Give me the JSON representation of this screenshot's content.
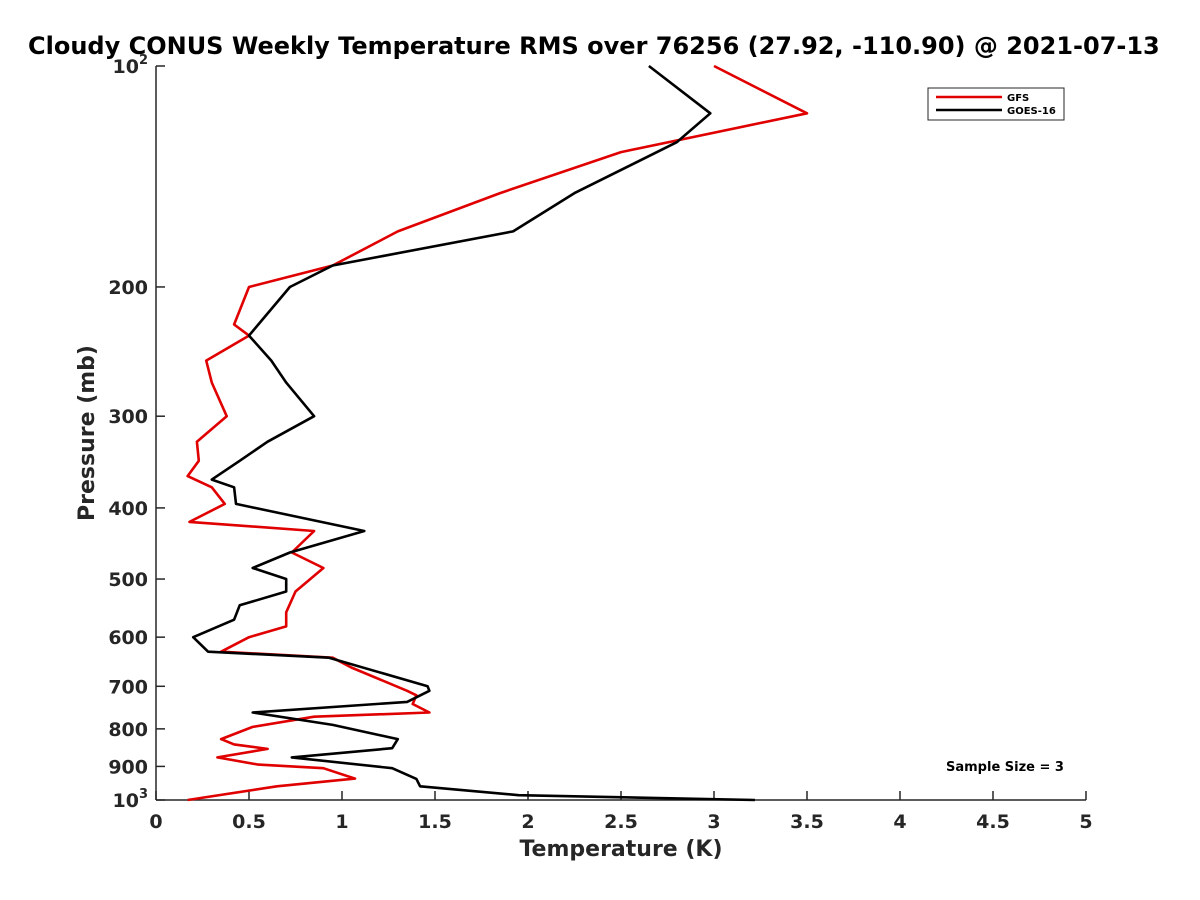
{
  "chart_data": {
    "type": "line",
    "title": "Cloudy CONUS Weekly Temperature RMS over 76256 (27.92, -110.90) @ 2021-07-13",
    "xlabel": "Temperature (K)",
    "ylabel": "Pressure (mb)",
    "xlim": [
      0,
      5
    ],
    "ylim": [
      100,
      1000
    ],
    "yscale": "log",
    "y_reversed": true,
    "grid": false,
    "legend_position": "top-right",
    "x_ticks": [
      0,
      0.5,
      1,
      1.5,
      2,
      2.5,
      3,
      3.5,
      4,
      4.5,
      5
    ],
    "x_tick_labels": [
      "0",
      "0.5",
      "1",
      "1.5",
      "2",
      "2.5",
      "3",
      "3.5",
      "4",
      "4.5",
      "5"
    ],
    "y_ticks": [
      100,
      200,
      300,
      400,
      500,
      600,
      700,
      800,
      900,
      1000
    ],
    "y_tick_labels": [
      {
        "base": "10",
        "exp": "2"
      },
      {
        "text": "200"
      },
      {
        "text": "300"
      },
      {
        "text": "400"
      },
      {
        "text": "500"
      },
      {
        "text": "600"
      },
      {
        "text": "700"
      },
      {
        "text": "800"
      },
      {
        "text": "900"
      },
      {
        "base": "10",
        "exp": "3"
      }
    ],
    "annotation": "Sample Size = 3",
    "series": [
      {
        "name": "GFS",
        "color": "#e00000",
        "temperature": [
          3.0,
          3.5,
          2.5,
          1.85,
          1.3,
          0.95,
          0.5,
          0.42,
          0.5,
          0.27,
          0.3,
          0.38,
          0.22,
          0.23,
          0.17,
          0.3,
          0.37,
          0.18,
          0.85,
          0.73,
          0.9,
          0.75,
          0.7,
          0.7,
          0.5,
          0.35,
          0.95,
          1.05,
          1.35,
          1.4,
          1.38,
          1.47,
          0.85,
          0.52,
          0.35,
          0.42,
          0.6,
          0.33,
          0.55,
          0.9,
          1.07,
          0.65,
          0.17
        ],
        "pressure": [
          100,
          116,
          131,
          149,
          168,
          187,
          200,
          225,
          233,
          252,
          270,
          300,
          325,
          345,
          362,
          375,
          395,
          418,
          430,
          460,
          483,
          520,
          555,
          580,
          600,
          628,
          640,
          660,
          710,
          720,
          740,
          760,
          770,
          795,
          826,
          840,
          852,
          875,
          895,
          905,
          935,
          958,
          1000
        ]
      },
      {
        "name": "GOES-16",
        "color": "#000000",
        "temperature": [
          2.65,
          2.98,
          2.8,
          2.25,
          1.92,
          0.95,
          0.72,
          0.55,
          0.5,
          0.62,
          0.7,
          0.85,
          0.6,
          0.45,
          0.3,
          0.42,
          0.43,
          1.12,
          0.72,
          0.52,
          0.7,
          0.7,
          0.45,
          0.42,
          0.2,
          0.28,
          0.93,
          1.46,
          1.47,
          1.35,
          0.52,
          0.95,
          1.3,
          1.27,
          0.73,
          1.27,
          1.4,
          1.42,
          1.95,
          3.22
        ],
        "pressure": [
          100,
          116,
          127,
          149,
          168,
          187,
          200,
          225,
          233,
          252,
          270,
          300,
          325,
          345,
          366,
          375,
          395,
          430,
          460,
          483,
          500,
          520,
          543,
          568,
          600,
          628,
          640,
          700,
          710,
          735,
          760,
          790,
          826,
          850,
          875,
          905,
          936,
          958,
          985,
          1000
        ]
      }
    ]
  }
}
